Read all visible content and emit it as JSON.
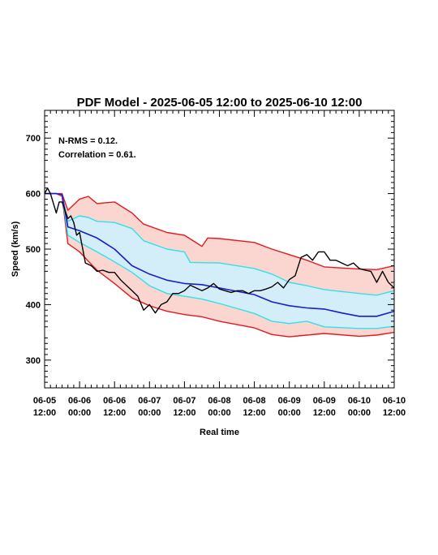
{
  "chart_data": {
    "type": "line",
    "title": "PDF Model - 2025-06-05 12:00 to 2025-06-10 12:00",
    "xlabel": "Real time",
    "ylabel": "Speed (km/s)",
    "xlim": [
      "2025-06-05 12:00",
      "2025-06-10 12:00"
    ],
    "ylim": [
      250,
      750
    ],
    "x_ticks": [
      {
        "x": "2025-06-05 12:00",
        "line1": "06-05",
        "line2": "12:00"
      },
      {
        "x": "2025-06-06 00:00",
        "line1": "06-06",
        "line2": "00:00"
      },
      {
        "x": "2025-06-06 12:00",
        "line1": "06-06",
        "line2": "12:00"
      },
      {
        "x": "2025-06-07 00:00",
        "line1": "06-07",
        "line2": "00:00"
      },
      {
        "x": "2025-06-07 12:00",
        "line1": "06-07",
        "line2": "12:00"
      },
      {
        "x": "2025-06-08 00:00",
        "line1": "06-08",
        "line2": "00:00"
      },
      {
        "x": "2025-06-08 12:00",
        "line1": "06-08",
        "line2": "12:00"
      },
      {
        "x": "2025-06-09 00:00",
        "line1": "06-09",
        "line2": "00:00"
      },
      {
        "x": "2025-06-09 12:00",
        "line1": "06-09",
        "line2": "12:00"
      },
      {
        "x": "2025-06-10 00:00",
        "line1": "06-10",
        "line2": "00:00"
      },
      {
        "x": "2025-06-10 12:00",
        "line1": "06-10",
        "line2": "12:00"
      }
    ],
    "y_ticks": [
      300,
      400,
      500,
      600,
      700
    ],
    "annotations": [
      "N-RMS = 0.12.",
      "Correlation = 0.61."
    ],
    "colors": {
      "outer_band_fill": "#fbd5d0",
      "outer_band_line": "#e31a1c",
      "inner_band_fill": "#d4eef9",
      "inner_band_line": "#33e0e8",
      "median_line": "#1c1cc8",
      "observed_line": "#000000"
    },
    "outer_upper": {
      "x": [
        "2025-06-05 12:00",
        "2025-06-05 16:00",
        "2025-06-05 18:00",
        "2025-06-05 20:00",
        "2025-06-06 00:00",
        "2025-06-06 03:00",
        "2025-06-06 06:00",
        "2025-06-06 12:00",
        "2025-06-06 18:00",
        "2025-06-06 22:00",
        "2025-06-07 06:00",
        "2025-06-07 12:00",
        "2025-06-07 18:00",
        "2025-06-07 20:00",
        "2025-06-08 00:00",
        "2025-06-08 12:00",
        "2025-06-08 18:00",
        "2025-06-09 00:00",
        "2025-06-09 06:00",
        "2025-06-09 12:00",
        "2025-06-10 00:00",
        "2025-06-10 06:00",
        "2025-06-10 12:00"
      ],
      "y": [
        600,
        600,
        600,
        570,
        590,
        595,
        582,
        585,
        565,
        545,
        530,
        525,
        505,
        520,
        519,
        512,
        500,
        490,
        480,
        468,
        464,
        463,
        470
      ]
    },
    "outer_lower": {
      "x": [
        "2025-06-05 12:00",
        "2025-06-05 16:00",
        "2025-06-05 18:00",
        "2025-06-05 20:00",
        "2025-06-06 00:00",
        "2025-06-06 03:00",
        "2025-06-06 06:00",
        "2025-06-06 12:00",
        "2025-06-06 18:00",
        "2025-06-07 00:00",
        "2025-06-07 06:00",
        "2025-06-07 12:00",
        "2025-06-07 18:00",
        "2025-06-08 00:00",
        "2025-06-08 12:00",
        "2025-06-08 18:00",
        "2025-06-09 00:00",
        "2025-06-09 06:00",
        "2025-06-09 12:00",
        "2025-06-10 00:00",
        "2025-06-10 06:00",
        "2025-06-10 12:00"
      ],
      "y": [
        600,
        600,
        595,
        510,
        495,
        478,
        462,
        438,
        412,
        398,
        388,
        382,
        378,
        370,
        358,
        346,
        342,
        345,
        348,
        343,
        345,
        350
      ]
    },
    "inner_upper": {
      "x": [
        "2025-06-05 12:00",
        "2025-06-05 16:00",
        "2025-06-05 18:00",
        "2025-06-05 20:00",
        "2025-06-06 00:00",
        "2025-06-06 03:00",
        "2025-06-06 06:00",
        "2025-06-06 12:00",
        "2025-06-06 18:00",
        "2025-06-06 22:00",
        "2025-06-07 06:00",
        "2025-06-07 12:00",
        "2025-06-07 14:00",
        "2025-06-08 00:00",
        "2025-06-08 12:00",
        "2025-06-08 18:00",
        "2025-06-09 00:00",
        "2025-06-09 06:00",
        "2025-06-09 12:00",
        "2025-06-10 00:00",
        "2025-06-10 06:00",
        "2025-06-10 12:00"
      ],
      "y": [
        600,
        600,
        598,
        550,
        560,
        557,
        550,
        548,
        537,
        515,
        500,
        495,
        476,
        475,
        465,
        455,
        440,
        434,
        427,
        420,
        417,
        425
      ]
    },
    "inner_lower": {
      "x": [
        "2025-06-05 12:00",
        "2025-06-05 16:00",
        "2025-06-05 18:00",
        "2025-06-05 20:00",
        "2025-06-06 00:00",
        "2025-06-06 06:00",
        "2025-06-06 12:00",
        "2025-06-06 18:00",
        "2025-06-07 00:00",
        "2025-06-07 06:00",
        "2025-06-07 12:00",
        "2025-06-07 18:00",
        "2025-06-08 00:00",
        "2025-06-08 12:00",
        "2025-06-08 18:00",
        "2025-06-09 00:00",
        "2025-06-09 06:00",
        "2025-06-09 12:00",
        "2025-06-10 00:00",
        "2025-06-10 06:00",
        "2025-06-10 12:00"
      ],
      "y": [
        600,
        600,
        597,
        525,
        512,
        495,
        477,
        458,
        434,
        420,
        415,
        410,
        402,
        384,
        370,
        366,
        370,
        360,
        357,
        357,
        361
      ]
    },
    "median": {
      "x": [
        "2025-06-05 12:00",
        "2025-06-05 16:00",
        "2025-06-05 18:00",
        "2025-06-05 20:00",
        "2025-06-06 00:00",
        "2025-06-06 06:00",
        "2025-06-06 12:00",
        "2025-06-06 18:00",
        "2025-06-07 00:00",
        "2025-06-07 06:00",
        "2025-06-07 12:00",
        "2025-06-07 18:00",
        "2025-06-08 00:00",
        "2025-06-08 12:00",
        "2025-06-08 18:00",
        "2025-06-09 00:00",
        "2025-06-09 06:00",
        "2025-06-09 12:00",
        "2025-06-09 18:00",
        "2025-06-10 00:00",
        "2025-06-10 06:00",
        "2025-06-10 12:00"
      ],
      "y": [
        600,
        600,
        598,
        540,
        533,
        520,
        500,
        470,
        455,
        444,
        438,
        436,
        430,
        418,
        405,
        398,
        394,
        392,
        385,
        379,
        379,
        388
      ]
    },
    "observed": {
      "x": [
        "2025-06-05 12:00",
        "2025-06-05 13:00",
        "2025-06-05 14:00",
        "2025-06-05 16:00",
        "2025-06-05 17:00",
        "2025-06-05 18:00",
        "2025-06-05 20:00",
        "2025-06-05 21:00",
        "2025-06-05 22:00",
        "2025-06-05 23:00",
        "2025-06-06 00:00",
        "2025-06-06 02:00",
        "2025-06-06 04:00",
        "2025-06-06 06:00",
        "2025-06-06 08:00",
        "2025-06-06 10:00",
        "2025-06-06 12:00",
        "2025-06-06 14:00",
        "2025-06-06 16:00",
        "2025-06-06 18:00",
        "2025-06-06 20:00",
        "2025-06-06 22:00",
        "2025-06-07 00:00",
        "2025-06-07 02:00",
        "2025-06-07 04:00",
        "2025-06-07 06:00",
        "2025-06-07 08:00",
        "2025-06-07 10:00",
        "2025-06-07 12:00",
        "2025-06-07 14:00",
        "2025-06-07 16:00",
        "2025-06-07 18:00",
        "2025-06-07 20:00",
        "2025-06-07 22:00",
        "2025-06-08 00:00",
        "2025-06-08 02:00",
        "2025-06-08 04:00",
        "2025-06-08 06:00",
        "2025-06-08 08:00",
        "2025-06-08 10:00",
        "2025-06-08 12:00",
        "2025-06-08 14:00",
        "2025-06-08 16:00",
        "2025-06-08 18:00",
        "2025-06-08 20:00",
        "2025-06-08 22:00",
        "2025-06-09 00:00",
        "2025-06-09 02:00",
        "2025-06-09 04:00",
        "2025-06-09 06:00",
        "2025-06-09 08:00",
        "2025-06-09 10:00",
        "2025-06-09 12:00",
        "2025-06-09 14:00",
        "2025-06-09 16:00",
        "2025-06-09 18:00",
        "2025-06-09 20:00",
        "2025-06-09 22:00",
        "2025-06-10 00:00",
        "2025-06-10 02:00",
        "2025-06-10 04:00",
        "2025-06-10 06:00",
        "2025-06-10 08:00",
        "2025-06-10 10:00",
        "2025-06-10 12:00"
      ],
      "y": [
        600,
        610,
        600,
        565,
        585,
        585,
        555,
        560,
        548,
        525,
        530,
        475,
        470,
        460,
        462,
        458,
        458,
        445,
        435,
        425,
        415,
        390,
        400,
        385,
        400,
        405,
        420,
        420,
        425,
        435,
        430,
        425,
        430,
        438,
        428,
        425,
        422,
        425,
        425,
        420,
        425,
        425,
        428,
        432,
        440,
        430,
        445,
        452,
        485,
        490,
        480,
        495,
        495,
        480,
        480,
        475,
        470,
        475,
        465,
        462,
        460,
        440,
        460,
        440,
        430
      ]
    }
  }
}
